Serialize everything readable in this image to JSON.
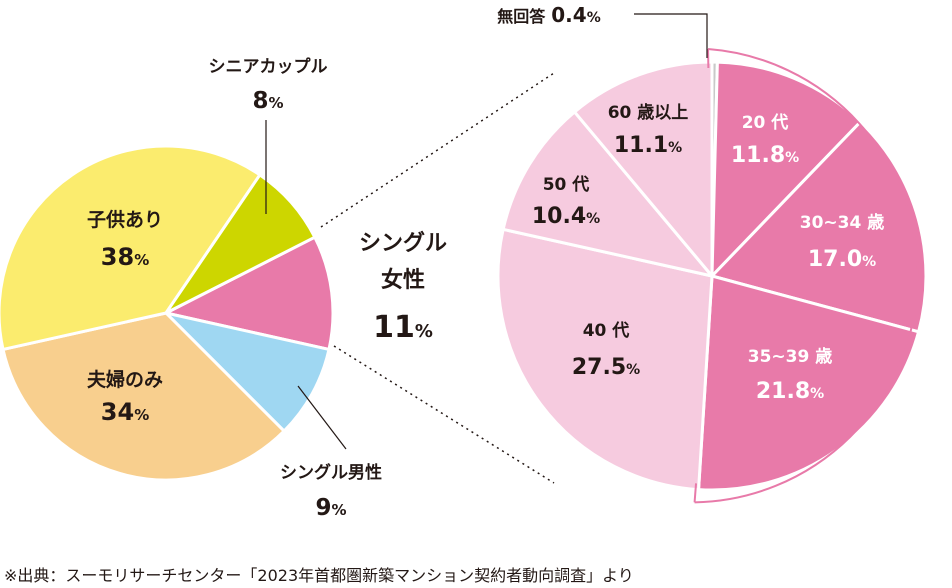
{
  "chart_data": [
    {
      "type": "pie",
      "categories": [
        "シングル女性",
        "シングル男性",
        "夫婦のみ",
        "子供あり",
        "シニアカップル"
      ],
      "values": [
        11,
        9,
        34,
        38,
        8
      ],
      "unit": "%",
      "colors": [
        "#e87aa9",
        "#9fd7f2",
        "#f8cf8e",
        "#fbec6e",
        "#cdd600"
      ],
      "labels": {
        "single_female": {
          "line1": "シングル",
          "line2": "女性",
          "value": "11",
          "unit": "%"
        },
        "single_male": {
          "line1": "シングル男性",
          "value": "9",
          "unit": "%"
        },
        "couple_only": {
          "line1": "夫婦のみ",
          "value": "34",
          "unit": "%"
        },
        "with_children": {
          "line1": "子供あり",
          "value": "38",
          "unit": "%"
        },
        "senior_couple": {
          "line1": "シニアカップル",
          "value": "8",
          "unit": "%"
        }
      }
    },
    {
      "type": "pie",
      "categories": [
        "無回答",
        "20 代",
        "30~34 歳",
        "35~39 歳",
        "40 代",
        "50 代",
        "60 歳以上"
      ],
      "values": [
        0.4,
        11.8,
        17.0,
        21.8,
        27.5,
        10.4,
        11.1
      ],
      "unit": "%",
      "colors": [
        "#c9c9c9",
        "#e87aa9",
        "#e87aa9",
        "#e87aa9",
        "#f6cbdf",
        "#f6cbdf",
        "#f6cbdf"
      ],
      "labels": {
        "no_answer": {
          "name": "無回答",
          "value": "0.4",
          "unit": "%"
        },
        "age20s": {
          "name": "20 代",
          "value": "11.8",
          "unit": "%"
        },
        "age30_34": {
          "name": "30~34 歳",
          "value": "17.0",
          "unit": "%"
        },
        "age35_39": {
          "name": "35~39 歳",
          "value": "21.8",
          "unit": "%"
        },
        "age40s": {
          "name": "40 代",
          "value": "27.5",
          "unit": "%"
        },
        "age50s": {
          "name": "50 代",
          "value": "10.4",
          "unit": "%"
        },
        "age60plus": {
          "name": "60 歳以上",
          "value": "11.1",
          "unit": "%"
        }
      },
      "highlight_color": "#e87aa9"
    }
  ],
  "source": "※出典：スーモリサーチセンター「2023年首都圏新築マンション契約者動向調査」より"
}
